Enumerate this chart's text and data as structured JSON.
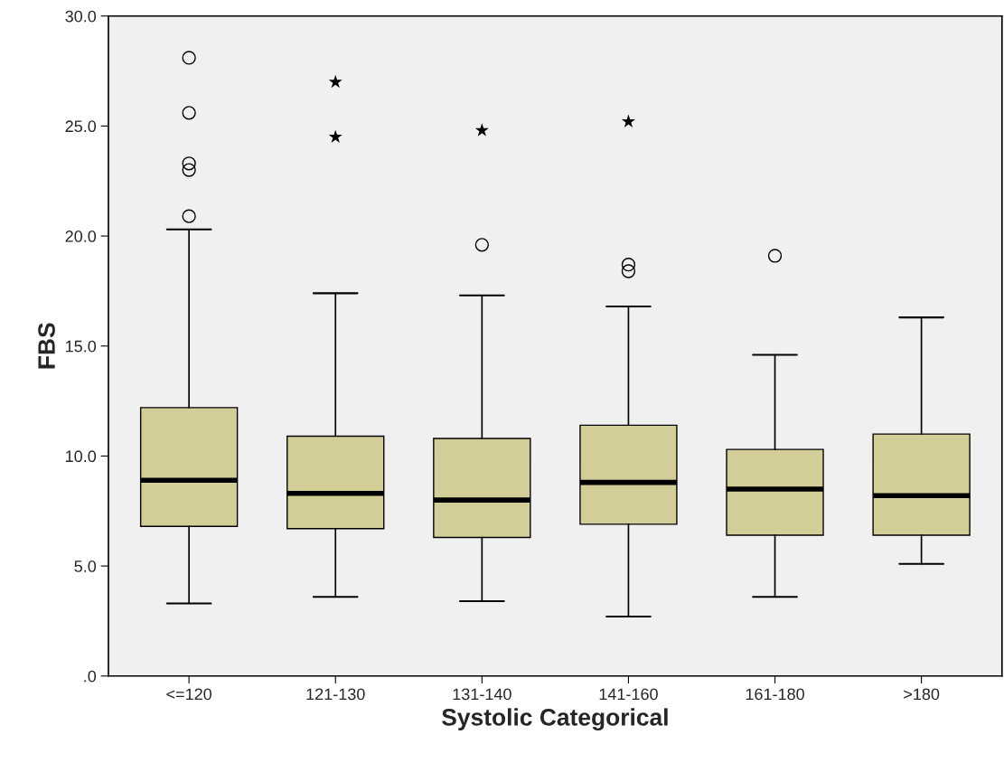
{
  "chart_data": {
    "type": "box",
    "xlabel": "Systolic Categorical",
    "ylabel": "FBS",
    "categories": [
      "<=120",
      "121-130",
      "131-140",
      "141-160",
      "161-180",
      ">180"
    ],
    "boxes": [
      {
        "low": 3.3,
        "q1": 6.8,
        "median": 8.9,
        "q3": 12.2,
        "high": 20.3,
        "outliers": [
          28.1,
          25.6,
          23.3,
          23.0,
          20.9
        ]
      },
      {
        "low": 3.6,
        "q1": 6.7,
        "median": 8.3,
        "q3": 10.9,
        "high": 17.4
      },
      {
        "low": 3.4,
        "q1": 6.3,
        "median": 8.0,
        "q3": 10.8,
        "high": 17.3,
        "outliers": [
          19.6
        ]
      },
      {
        "low": 2.7,
        "q1": 6.9,
        "median": 8.8,
        "q3": 11.4,
        "high": 16.8,
        "outliers": [
          18.7,
          18.4
        ]
      },
      {
        "low": 3.6,
        "q1": 6.4,
        "median": 8.5,
        "q3": 10.3,
        "high": 14.6,
        "outliers": [
          19.1
        ]
      },
      {
        "low": 5.1,
        "q1": 6.4,
        "median": 8.2,
        "q3": 11.0,
        "high": 16.3
      }
    ],
    "series": [
      {
        "type": "scatter",
        "marker": "star",
        "color": "#000000",
        "x": [
          "121-130",
          "121-130",
          "131-140",
          "141-160"
        ],
        "values": [
          27.0,
          24.5,
          24.8,
          25.2
        ]
      }
    ],
    "color": "#d3ce97",
    "ylim": [
      0,
      30
    ],
    "yticks": [
      {
        "value": 0,
        "label": ".0"
      },
      {
        "value": 5,
        "label": "5.0"
      },
      {
        "value": 10,
        "label": "10.0"
      },
      {
        "value": 15,
        "label": "15.0"
      },
      {
        "value": 20,
        "label": "20.0"
      },
      {
        "value": 25,
        "label": "25.0"
      },
      {
        "value": 30,
        "label": "30.0"
      }
    ],
    "grid": false,
    "legend": false
  }
}
